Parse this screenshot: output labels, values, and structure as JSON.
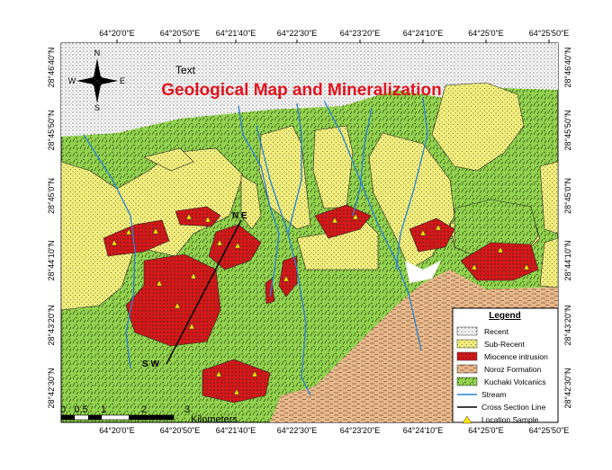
{
  "map": {
    "title": "Geological Map and Mineralization",
    "text_label": "Text",
    "compass": {
      "n": "N",
      "s": "S",
      "e": "E",
      "w": "W"
    },
    "lon_labels": [
      "64°20'0\"E",
      "64°20'50\"E",
      "64°21'40\"E",
      "64°22'30\"E",
      "64°23'20\"E",
      "64°24'10\"E",
      "64°25'0\"E",
      "64°25'50\"E"
    ],
    "lat_labels": [
      "28°46'40\"N",
      "28°45'50\"N",
      "28°45'0\"N",
      "28°44'10\"N",
      "28°43'20\"N",
      "28°42'30\"N"
    ],
    "section_ends": {
      "start": "S W",
      "end": "N E"
    },
    "scale": {
      "ticks": [
        "0",
        "0.5",
        "1",
        "2",
        "3"
      ],
      "unit": "Kilometers"
    },
    "legend": {
      "title": "Legend",
      "items": [
        "Recent",
        "Sub-Recent",
        "Miocence intrusion",
        "Noroz Formation",
        "Kuchaki Volcanics",
        "Stream",
        "Cross Section Line",
        "Location Sample"
      ]
    }
  }
}
